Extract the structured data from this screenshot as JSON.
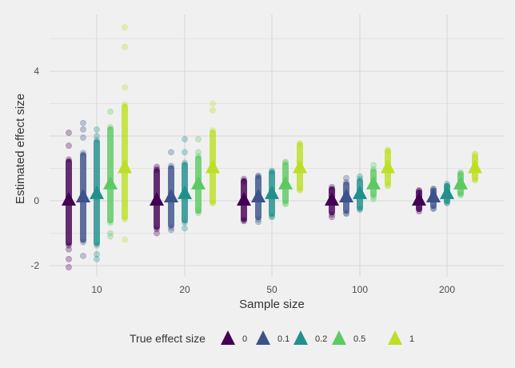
{
  "chart_data": {
    "type": "scatter",
    "xlabel": "Sample size",
    "ylabel": "Estimated effect size",
    "categories": [
      "10",
      "20",
      "50",
      "100",
      "200"
    ],
    "y_ticks": [
      "-2",
      "0",
      "4"
    ],
    "ylim": [
      -2.3,
      5.6
    ],
    "grid": true,
    "legend": {
      "title": "True effect size",
      "placement": "bottom",
      "labels": [
        "0",
        "0.1",
        "0.2",
        "0.5",
        "1"
      ]
    },
    "series": [
      {
        "name": "0",
        "color": "#440154",
        "true_value": 0,
        "range": [
          [
            -1.3,
            1.2
          ],
          [
            -0.8,
            0.9
          ],
          [
            -0.55,
            0.6
          ],
          [
            -0.35,
            0.35
          ],
          [
            -0.25,
            0.25
          ]
        ],
        "outliers": [
          [
            2.1,
            -2.05,
            -1.8,
            1.7,
            -1.5
          ],
          [
            1.05,
            -1.0,
            0.95
          ],
          [
            0.6,
            -0.6
          ],
          [
            0.3,
            -0.5
          ],
          [
            0.3,
            -0.2
          ]
        ]
      },
      {
        "name": "0.1",
        "color": "#3b528b",
        "true_value": 0.1,
        "range": [
          [
            -1.2,
            1.4
          ],
          [
            -0.75,
            1.0
          ],
          [
            -0.5,
            0.7
          ],
          [
            -0.3,
            0.5
          ],
          [
            -0.15,
            0.3
          ]
        ],
        "outliers": [
          [
            2.4,
            2.2,
            -1.7,
            1.95
          ],
          [
            1.5,
            -0.9
          ],
          [
            0.75,
            -0.65
          ],
          [
            0.7,
            -0.4
          ],
          [
            0.35,
            -0.25
          ]
        ]
      },
      {
        "name": "0.2",
        "color": "#21908c",
        "true_value": 0.2,
        "range": [
          [
            -1.3,
            1.8
          ],
          [
            -0.6,
            1.1
          ],
          [
            -0.4,
            0.85
          ],
          [
            -0.2,
            0.6
          ],
          [
            0.0,
            0.45
          ]
        ],
        "outliers": [
          [
            2.2,
            -1.65,
            -1.8,
            2.0
          ],
          [
            1.9,
            1.5,
            -0.85
          ],
          [
            0.9,
            -0.5
          ],
          [
            0.75,
            -0.25
          ],
          [
            0.45,
            -0.05
          ]
        ]
      },
      {
        "name": "0.5",
        "color": "#5dc963",
        "true_value": 0.5,
        "range": [
          [
            -0.6,
            2.2
          ],
          [
            -0.3,
            1.3
          ],
          [
            0.0,
            1.1
          ],
          [
            0.2,
            0.9
          ],
          [
            0.25,
            0.8
          ]
        ],
        "outliers": [
          [
            2.75,
            -1.0,
            -1.1
          ],
          [
            1.9,
            1.5,
            -0.3
          ],
          [
            1.2,
            -0.1
          ],
          [
            1.1,
            0.05
          ],
          [
            0.85,
            0.2
          ]
        ]
      },
      {
        "name": "1",
        "color": "#bddf26",
        "true_value": 1,
        "range": [
          [
            -0.5,
            2.9
          ],
          [
            0.0,
            2.1
          ],
          [
            0.4,
            1.7
          ],
          [
            0.55,
            1.5
          ],
          [
            0.7,
            1.35
          ]
        ],
        "outliers": [
          [
            5.35,
            4.75,
            3.5,
            -1.2
          ],
          [
            3.0,
            2.8,
            -0.05
          ],
          [
            1.75,
            0.35
          ],
          [
            1.55,
            0.45
          ],
          [
            1.45,
            0.65
          ]
        ]
      }
    ]
  }
}
